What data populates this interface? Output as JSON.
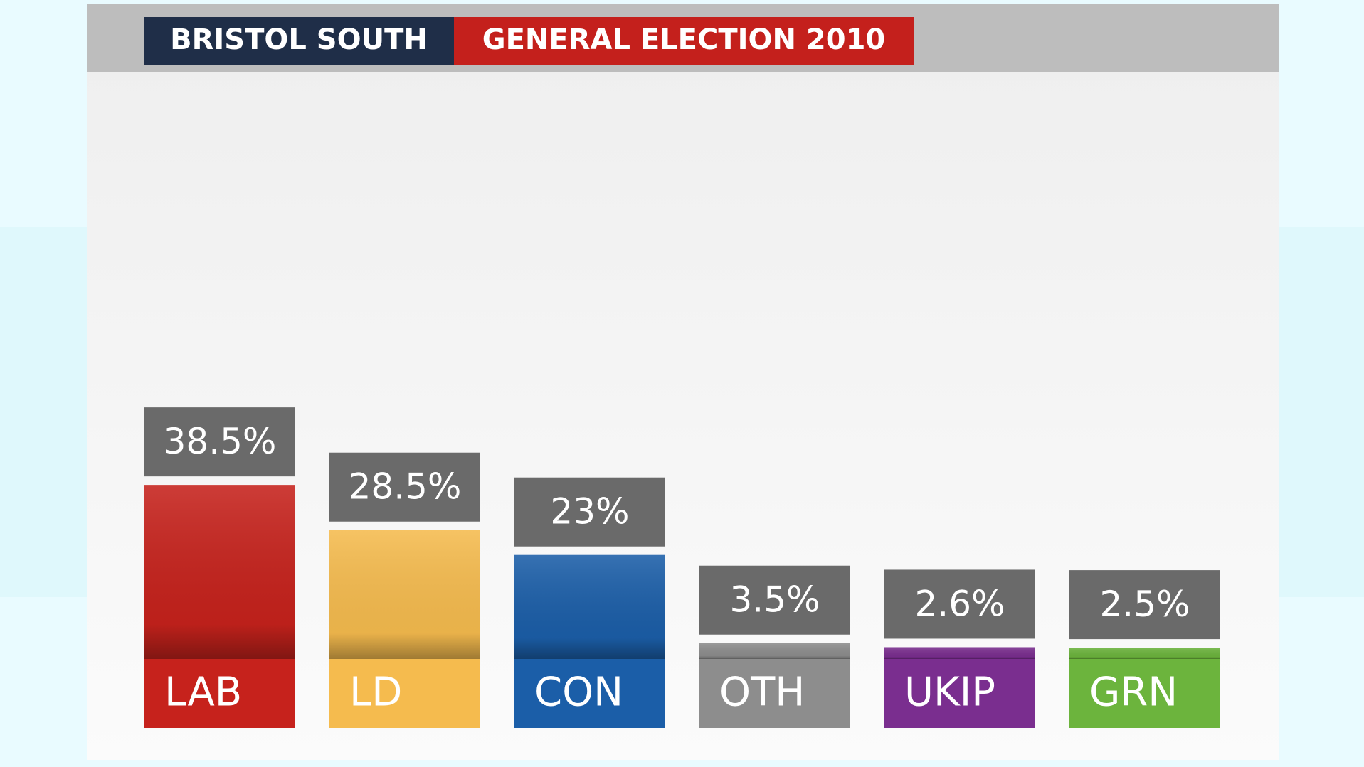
{
  "chart_data": {
    "type": "bar",
    "title": "BRISTOL SOUTH",
    "subtitle": "GENERAL ELECTION 2010",
    "categories": [
      "LAB",
      "LD",
      "CON",
      "OTH",
      "UKIP",
      "GRN"
    ],
    "values": [
      38.5,
      28.5,
      23,
      3.5,
      2.6,
      2.5
    ],
    "value_labels": [
      "38.5%",
      "28.5%",
      "23%",
      "3.5%",
      "2.6%",
      "2.5%"
    ],
    "colors": [
      "#c6221c",
      "#f5bb4e",
      "#1b5ea8",
      "#8d8d8d",
      "#7a2e8f",
      "#6cb43d"
    ]
  }
}
